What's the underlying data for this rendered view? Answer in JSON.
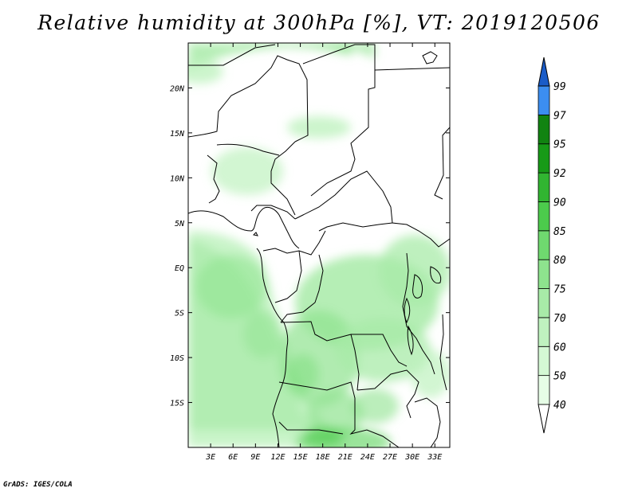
{
  "title": "Relative humidity at 300hPa [%], VT: 2019120506",
  "footer": "GrADS: IGES/COLA",
  "map": {
    "lon_range": [
      0,
      35
    ],
    "lat_range": [
      -20,
      25
    ],
    "lat_ticks": [
      {
        "value": 20,
        "label": "20N"
      },
      {
        "value": 15,
        "label": "15N"
      },
      {
        "value": 10,
        "label": "10N"
      },
      {
        "value": 5,
        "label": "5N"
      },
      {
        "value": 0,
        "label": "EQ"
      },
      {
        "value": -5,
        "label": "5S"
      },
      {
        "value": -10,
        "label": "10S"
      },
      {
        "value": -15,
        "label": "15S"
      }
    ],
    "lon_ticks": [
      {
        "value": 3,
        "label": "3E"
      },
      {
        "value": 6,
        "label": "6E"
      },
      {
        "value": 9,
        "label": "9E"
      },
      {
        "value": 12,
        "label": "12E"
      },
      {
        "value": 15,
        "label": "15E"
      },
      {
        "value": 18,
        "label": "18E"
      },
      {
        "value": 21,
        "label": "21E"
      },
      {
        "value": 24,
        "label": "24E"
      },
      {
        "value": 27,
        "label": "27E"
      },
      {
        "value": 30,
        "label": "30E"
      },
      {
        "value": 33,
        "label": "33E"
      }
    ]
  },
  "colorbar": {
    "levels": [
      {
        "label": "40",
        "color": "#e6fde6"
      },
      {
        "label": "50",
        "color": "#d4f8d4"
      },
      {
        "label": "60",
        "color": "#bff2bf"
      },
      {
        "label": "70",
        "color": "#a8eba8"
      },
      {
        "label": "75",
        "color": "#8ee38e"
      },
      {
        "label": "80",
        "color": "#6fd96f"
      },
      {
        "label": "85",
        "color": "#4ccb4c"
      },
      {
        "label": "90",
        "color": "#31b531"
      },
      {
        "label": "92",
        "color": "#179a17"
      },
      {
        "label": "95",
        "color": "#118311"
      },
      {
        "label": "97",
        "color": "#3c8ef0"
      },
      {
        "label": "99",
        "color": "#2270d8"
      }
    ],
    "bottom_color": "#ffffff",
    "top_color": "#1a5cc8"
  }
}
